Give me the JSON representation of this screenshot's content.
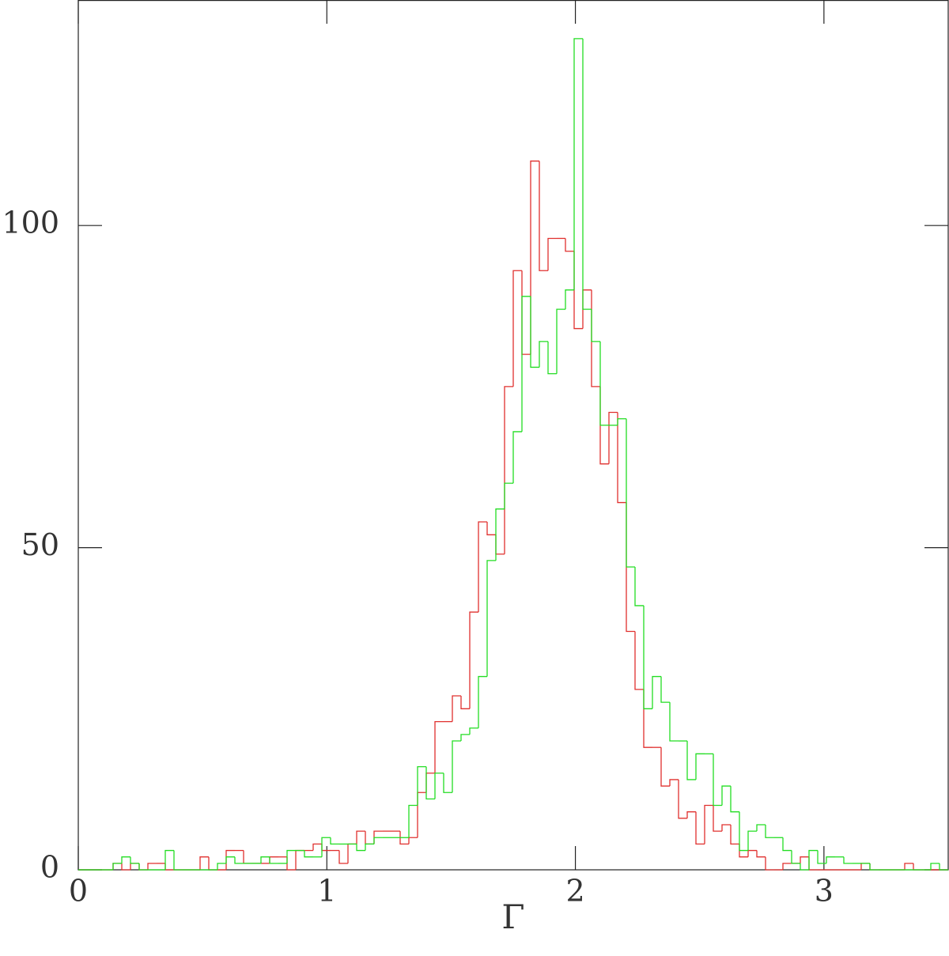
{
  "chart_data": {
    "type": "histogram",
    "x_label": "Γ",
    "bins": [
      0,
      0.035,
      0.07,
      0.105,
      0.14,
      0.175,
      0.21,
      0.245,
      0.28,
      0.315,
      0.35,
      0.385,
      0.42,
      0.455,
      0.49,
      0.525,
      0.56,
      0.595,
      0.63,
      0.665,
      0.7,
      0.735,
      0.77,
      0.805,
      0.84,
      0.875,
      0.91,
      0.945,
      0.98,
      1.015,
      1.05,
      1.085,
      1.12,
      1.155,
      1.19,
      1.225,
      1.26,
      1.295,
      1.33,
      1.365,
      1.4,
      1.435,
      1.47,
      1.505,
      1.54,
      1.575,
      1.61,
      1.645,
      1.68,
      1.715,
      1.75,
      1.785,
      1.82,
      1.855,
      1.89,
      1.925,
      1.96,
      1.995,
      2.03,
      2.065,
      2.1,
      2.135,
      2.17,
      2.205,
      2.24,
      2.275,
      2.31,
      2.345,
      2.38,
      2.415,
      2.45,
      2.485,
      2.52,
      2.555,
      2.59,
      2.625,
      2.66,
      2.695,
      2.73,
      2.765,
      2.8,
      2.835,
      2.87,
      2.905,
      2.94,
      2.975,
      3.01,
      3.045,
      3.08,
      3.115,
      3.15,
      3.185,
      3.22,
      3.255,
      3.29,
      3.325,
      3.36,
      3.395,
      3.43,
      3.465,
      3.5
    ],
    "series": [
      {
        "color": "#e0302e",
        "values": [
          0,
          0,
          0,
          0,
          1,
          0,
          1,
          0,
          1,
          1,
          0,
          0,
          0,
          0,
          2,
          0,
          0,
          3,
          3,
          1,
          1,
          1,
          2,
          2,
          0,
          3,
          3,
          4,
          3,
          3,
          1,
          4,
          6,
          4,
          6,
          6,
          6,
          4,
          5,
          12,
          15,
          23,
          23,
          27,
          25,
          40,
          54,
          52,
          49,
          75,
          93,
          80,
          110,
          93,
          98,
          98,
          96,
          84,
          90,
          75,
          63,
          71,
          57,
          37,
          28,
          19,
          19,
          13,
          14,
          8,
          9,
          4,
          10,
          6,
          7,
          4,
          2,
          3,
          2,
          0,
          0,
          1,
          1,
          2,
          0,
          0,
          0,
          0,
          0,
          0,
          1,
          0,
          0,
          0,
          0,
          1,
          0,
          0,
          0,
          0
        ]
      },
      {
        "color": "#22dd22",
        "values": [
          0,
          0,
          0,
          0,
          1,
          2,
          1,
          0,
          0,
          0,
          3,
          0,
          0,
          0,
          0,
          0,
          1,
          2,
          1,
          1,
          1,
          2,
          1,
          1,
          3,
          3,
          2,
          2,
          5,
          4,
          4,
          4,
          3,
          4,
          5,
          5,
          5,
          5,
          10,
          16,
          11,
          15,
          12,
          20,
          21,
          22,
          30,
          48,
          56,
          60,
          68,
          89,
          78,
          82,
          77,
          87,
          90,
          129,
          87,
          82,
          69,
          69,
          70,
          47,
          41,
          25,
          30,
          26,
          20,
          20,
          14,
          18,
          18,
          10,
          13,
          9,
          3,
          6,
          7,
          5,
          5,
          3,
          1,
          0,
          3,
          1,
          2,
          2,
          1,
          1,
          1,
          0,
          0,
          0,
          0,
          0,
          0,
          0,
          1,
          0
        ]
      }
    ],
    "xlim": [
      0,
      3.5
    ],
    "ylim": [
      0,
      135
    ],
    "xticks": [
      0,
      1,
      2,
      3
    ],
    "yticks": [
      0,
      50,
      100
    ]
  }
}
